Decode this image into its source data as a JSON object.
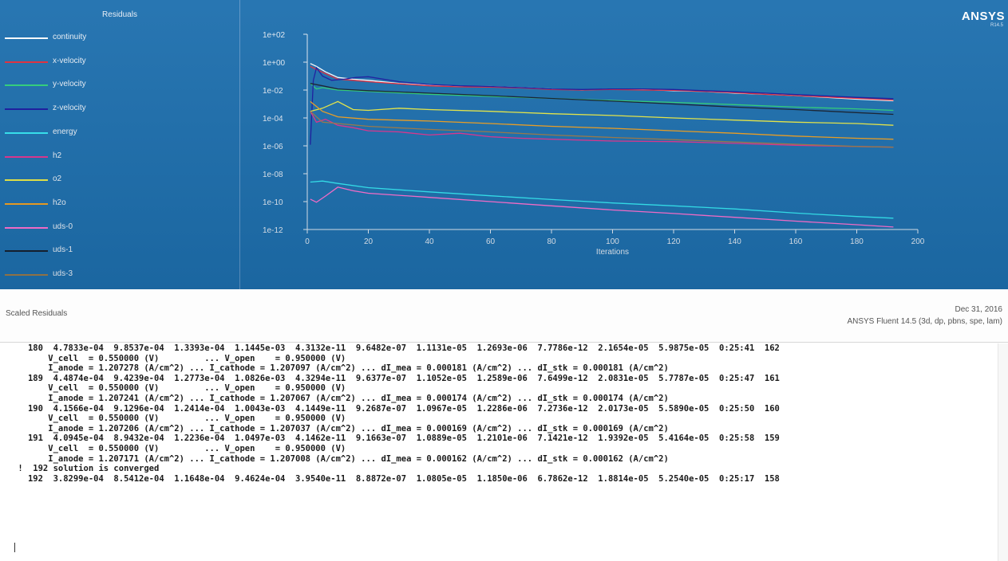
{
  "legend": {
    "title": "Residuals",
    "items": [
      {
        "label": "continuity",
        "color": "#ffffff"
      },
      {
        "label": "x-velocity",
        "color": "#e22b3b"
      },
      {
        "label": "y-velocity",
        "color": "#2fd07a"
      },
      {
        "label": "z-velocity",
        "color": "#1a1aa0"
      },
      {
        "label": "energy",
        "color": "#33e6f2"
      },
      {
        "label": "h2",
        "color": "#e0338f"
      },
      {
        "label": "o2",
        "color": "#e9ea47"
      },
      {
        "label": "h2o",
        "color": "#f0a020"
      },
      {
        "label": "uds-0",
        "color": "#ff6fd1"
      },
      {
        "label": "uds-1",
        "color": "#152030"
      },
      {
        "label": "uds-3",
        "color": "#9a7a4a"
      }
    ]
  },
  "branding": {
    "logo": "ANSYS",
    "version": "R14.5"
  },
  "info_bar": {
    "plot_name": "Scaled Residuals",
    "date": "Dec 31, 2016",
    "solver": "ANSYS Fluent 14.5 (3d, dp, pbns, spe, lam)"
  },
  "chart_data": {
    "type": "line",
    "xlabel": "Iterations",
    "ylabel": "",
    "xlim": [
      0,
      200
    ],
    "ylim": [
      1e-12,
      100
    ],
    "yscale": "log",
    "x_ticks": [
      "0",
      "20",
      "40",
      "60",
      "80",
      "100",
      "120",
      "140",
      "160",
      "180",
      "200"
    ],
    "y_ticks": [
      "1e+02",
      "1e+00",
      "1e-02",
      "1e-04",
      "1e-06",
      "1e-08",
      "1e-10",
      "1e-12"
    ],
    "series": [
      {
        "name": "continuity",
        "color": "#ffffff",
        "points": [
          [
            1,
            0.8
          ],
          [
            3,
            0.5
          ],
          [
            6,
            0.2
          ],
          [
            10,
            0.08
          ],
          [
            15,
            0.06
          ],
          [
            20,
            0.05
          ],
          [
            30,
            0.03
          ],
          [
            40,
            0.022
          ],
          [
            50,
            0.018
          ],
          [
            60,
            0.018
          ],
          [
            70,
            0.015
          ],
          [
            80,
            0.012
          ],
          [
            90,
            0.01
          ],
          [
            100,
            0.012
          ],
          [
            110,
            0.011
          ],
          [
            120,
            0.009
          ],
          [
            130,
            0.008
          ],
          [
            140,
            0.006
          ],
          [
            150,
            0.005
          ],
          [
            160,
            0.004
          ],
          [
            170,
            0.003
          ],
          [
            180,
            0.0022
          ],
          [
            192,
            0.0017
          ]
        ]
      },
      {
        "name": "x-velocity",
        "color": "#e22b3b",
        "points": [
          [
            1,
            0.5
          ],
          [
            3,
            0.3
          ],
          [
            6,
            0.15
          ],
          [
            10,
            0.06
          ],
          [
            15,
            0.05
          ],
          [
            20,
            0.04
          ],
          [
            30,
            0.028
          ],
          [
            40,
            0.02
          ],
          [
            50,
            0.017
          ],
          [
            60,
            0.016
          ],
          [
            70,
            0.014
          ],
          [
            80,
            0.011
          ],
          [
            90,
            0.01
          ],
          [
            100,
            0.011
          ],
          [
            110,
            0.01
          ],
          [
            120,
            0.0095
          ],
          [
            130,
            0.008
          ],
          [
            140,
            0.0065
          ],
          [
            150,
            0.005
          ],
          [
            160,
            0.004
          ],
          [
            170,
            0.0032
          ],
          [
            180,
            0.0025
          ],
          [
            192,
            0.0019
          ]
        ]
      },
      {
        "name": "y-velocity",
        "color": "#2fd07a",
        "points": [
          [
            1,
            0.03
          ],
          [
            3,
            0.012
          ],
          [
            5,
            0.015
          ],
          [
            10,
            0.01
          ],
          [
            20,
            0.008
          ],
          [
            40,
            0.005
          ],
          [
            60,
            0.0035
          ],
          [
            80,
            0.0025
          ],
          [
            100,
            0.0018
          ],
          [
            120,
            0.0013
          ],
          [
            140,
            0.0009
          ],
          [
            160,
            0.0006
          ],
          [
            180,
            0.00045
          ],
          [
            192,
            0.00035
          ]
        ]
      },
      {
        "name": "z-velocity",
        "color": "#1a1aa0",
        "points": [
          [
            1,
            1.2e-06
          ],
          [
            2,
            0.05
          ],
          [
            3,
            0.4
          ],
          [
            5,
            0.1
          ],
          [
            8,
            0.05
          ],
          [
            12,
            0.06
          ],
          [
            16,
            0.08
          ],
          [
            20,
            0.09
          ],
          [
            30,
            0.04
          ],
          [
            40,
            0.025
          ],
          [
            50,
            0.02
          ],
          [
            60,
            0.018
          ],
          [
            70,
            0.015
          ],
          [
            80,
            0.012
          ],
          [
            90,
            0.011
          ],
          [
            100,
            0.012
          ],
          [
            110,
            0.012
          ],
          [
            120,
            0.011
          ],
          [
            130,
            0.009
          ],
          [
            140,
            0.0075
          ],
          [
            150,
            0.006
          ],
          [
            160,
            0.0048
          ],
          [
            170,
            0.0038
          ],
          [
            180,
            0.003
          ],
          [
            192,
            0.0024
          ]
        ]
      },
      {
        "name": "energy",
        "color": "#33e6f2",
        "points": [
          [
            1,
            2.5e-09
          ],
          [
            5,
            3e-09
          ],
          [
            10,
            2e-09
          ],
          [
            20,
            1e-09
          ],
          [
            40,
            5e-10
          ],
          [
            60,
            2.6e-10
          ],
          [
            80,
            1.4e-10
          ],
          [
            100,
            8e-11
          ],
          [
            120,
            5e-11
          ],
          [
            140,
            3e-11
          ],
          [
            160,
            1.5e-11
          ],
          [
            180,
            8.5e-12
          ],
          [
            192,
            6.5e-12
          ]
        ]
      },
      {
        "name": "h2",
        "color": "#e0338f",
        "points": [
          [
            1,
            0.0003
          ],
          [
            3,
            5e-05
          ],
          [
            6,
            8e-05
          ],
          [
            10,
            3e-05
          ],
          [
            15,
            2e-05
          ],
          [
            20,
            1.2e-05
          ],
          [
            30,
            1e-05
          ],
          [
            40,
            6e-06
          ],
          [
            50,
            8e-06
          ],
          [
            60,
            4.5e-06
          ],
          [
            70,
            3.5e-06
          ],
          [
            80,
            3e-06
          ],
          [
            100,
            2.2e-06
          ],
          [
            120,
            2e-06
          ],
          [
            140,
            1.5e-06
          ],
          [
            160,
            1.1e-06
          ],
          [
            180,
            9e-07
          ],
          [
            192,
            8e-07
          ]
        ]
      },
      {
        "name": "o2",
        "color": "#e9ea47",
        "points": [
          [
            1,
            0.0003
          ],
          [
            5,
            0.0005
          ],
          [
            10,
            0.0015
          ],
          [
            15,
            0.0004
          ],
          [
            20,
            0.00035
          ],
          [
            30,
            0.0005
          ],
          [
            40,
            0.0004
          ],
          [
            60,
            0.0003
          ],
          [
            80,
            0.0002
          ],
          [
            100,
            0.00015
          ],
          [
            120,
            0.0001
          ],
          [
            140,
            7e-05
          ],
          [
            160,
            5e-05
          ],
          [
            180,
            4e-05
          ],
          [
            192,
            3e-05
          ]
        ]
      },
      {
        "name": "h2o",
        "color": "#f0a020",
        "points": [
          [
            1,
            0.0015
          ],
          [
            5,
            0.0003
          ],
          [
            10,
            0.00012
          ],
          [
            20,
            8e-05
          ],
          [
            40,
            6e-05
          ],
          [
            60,
            4e-05
          ],
          [
            80,
            2.5e-05
          ],
          [
            100,
            1.8e-05
          ],
          [
            120,
            1.2e-05
          ],
          [
            140,
            8e-06
          ],
          [
            160,
            5e-06
          ],
          [
            180,
            3.5e-06
          ],
          [
            192,
            3e-06
          ]
        ]
      },
      {
        "name": "uds-0",
        "color": "#ff6fd1",
        "points": [
          [
            1,
            1.5e-10
          ],
          [
            3,
            9e-11
          ],
          [
            6,
            2.5e-10
          ],
          [
            10,
            1.1e-09
          ],
          [
            15,
            6e-10
          ],
          [
            20,
            4e-10
          ],
          [
            40,
            2e-10
          ],
          [
            60,
            1e-10
          ],
          [
            80,
            5e-11
          ],
          [
            100,
            2.5e-11
          ],
          [
            120,
            1.4e-11
          ],
          [
            140,
            7.5e-12
          ],
          [
            160,
            4e-12
          ],
          [
            180,
            2.2e-12
          ],
          [
            192,
            1.5e-12
          ]
        ]
      },
      {
        "name": "uds-1",
        "color": "#152030",
        "points": [
          [
            1,
            0.03
          ],
          [
            5,
            0.02
          ],
          [
            10,
            0.012
          ],
          [
            20,
            0.009
          ],
          [
            40,
            0.006
          ],
          [
            60,
            0.004
          ],
          [
            80,
            0.0025
          ],
          [
            100,
            0.0016
          ],
          [
            120,
            0.001
          ],
          [
            140,
            0.0006
          ],
          [
            160,
            0.0004
          ],
          [
            180,
            0.00024
          ],
          [
            192,
            0.00018
          ]
        ]
      },
      {
        "name": "uds-3",
        "color": "#9a7a4a",
        "points": [
          [
            1,
            0.0003
          ],
          [
            5,
            5e-05
          ],
          [
            10,
            4e-05
          ],
          [
            20,
            2.5e-05
          ],
          [
            40,
            1.5e-05
          ],
          [
            60,
            1e-05
          ],
          [
            80,
            6e-06
          ],
          [
            100,
            4e-06
          ],
          [
            120,
            2.8e-06
          ],
          [
            140,
            1.9e-06
          ],
          [
            160,
            1.3e-06
          ],
          [
            180,
            9e-07
          ],
          [
            192,
            8e-07
          ]
        ]
      }
    ]
  },
  "console": {
    "lines": [
      "   180  4.7833e-04  9.8537e-04  1.3393e-04  1.1445e-03  4.3132e-11  9.6482e-07  1.1131e-05  1.2693e-06  7.7786e-12  2.1654e-05  5.9875e-05  0:25:41  162",
      "       V_cell  = 0.550000 (V)         ... V_open    = 0.950000 (V)",
      "       I_anode = 1.207278 (A/cm^2) ... I_cathode = 1.207097 (A/cm^2) ... dI_mea = 0.000181 (A/cm^2) ... dI_stk = 0.000181 (A/cm^2)",
      "   189  4.4874e-04  9.4239e-04  1.2773e-04  1.0826e-03  4.3294e-11  9.6377e-07  1.1052e-05  1.2589e-06  7.6499e-12  2.0831e-05  5.7787e-05  0:25:47  161",
      "       V_cell  = 0.550000 (V)         ... V_open    = 0.950000 (V)",
      "       I_anode = 1.207241 (A/cm^2) ... I_cathode = 1.207067 (A/cm^2) ... dI_mea = 0.000174 (A/cm^2) ... dI_stk = 0.000174 (A/cm^2)",
      "   190  4.1566e-04  9.1296e-04  1.2414e-04  1.0043e-03  4.1449e-11  9.2687e-07  1.0967e-05  1.2286e-06  7.2736e-12  2.0173e-05  5.5890e-05  0:25:50  160",
      "       V_cell  = 0.550000 (V)         ... V_open    = 0.950000 (V)",
      "       I_anode = 1.207206 (A/cm^2) ... I_cathode = 1.207037 (A/cm^2) ... dI_mea = 0.000169 (A/cm^2) ... dI_stk = 0.000169 (A/cm^2)",
      "   191  4.0945e-04  8.9432e-04  1.2236e-04  1.0497e-03  4.1462e-11  9.1663e-07  1.0889e-05  1.2101e-06  7.1421e-12  1.9392e-05  5.4164e-05  0:25:58  159",
      "       V_cell  = 0.550000 (V)         ... V_open    = 0.950000 (V)",
      "       I_anode = 1.207171 (A/cm^2) ... I_cathode = 1.207008 (A/cm^2) ... dI_mea = 0.000162 (A/cm^2) ... dI_stk = 0.000162 (A/cm^2)",
      " !  192 solution is converged",
      "   192  3.8299e-04  8.5412e-04  1.1648e-04  9.4624e-04  3.9540e-11  8.8872e-07  1.0805e-05  1.1850e-06  6.7862e-12  1.8814e-05  5.2540e-05  0:25:17  158"
    ]
  }
}
